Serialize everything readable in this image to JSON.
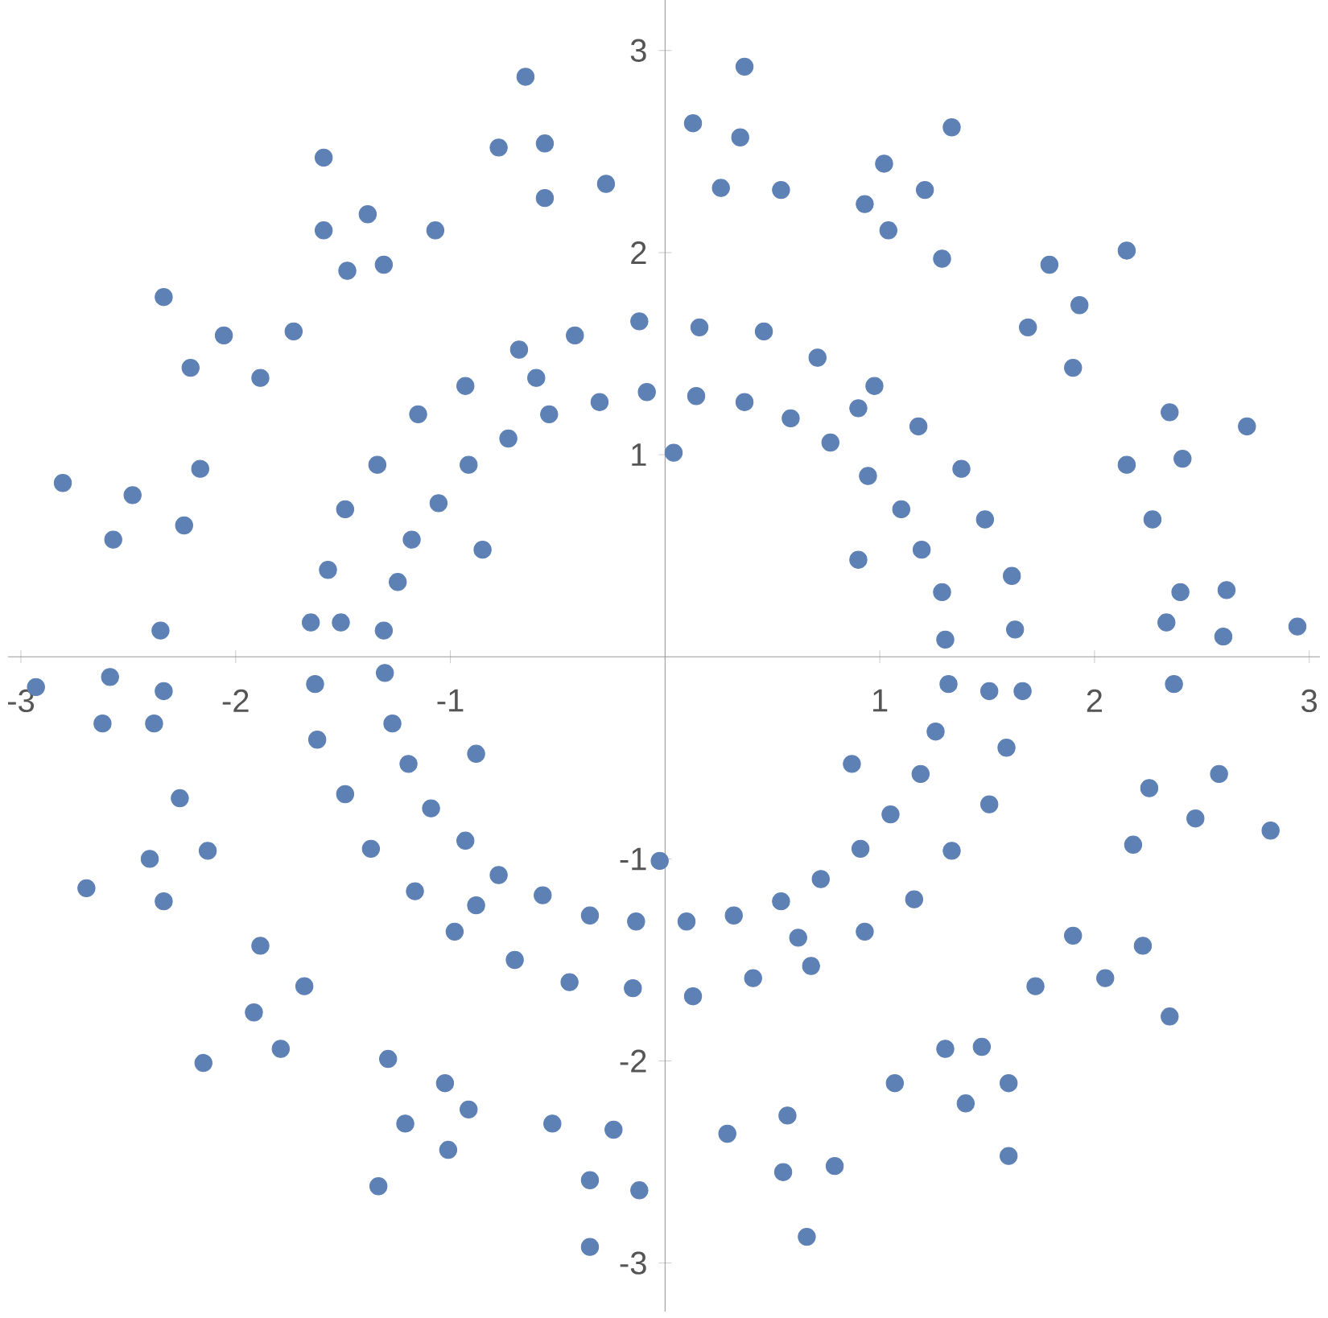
{
  "chart_data": {
    "type": "scatter",
    "marker": "circle",
    "grid": false,
    "xlim": [
      -3.06,
      3.05
    ],
    "ylim": [
      -3.24,
      3.25
    ],
    "xticks": [
      -3,
      -2,
      -1,
      1,
      2,
      3
    ],
    "yticks": [
      -3,
      -2,
      -1,
      1,
      2,
      3
    ],
    "series": [
      {
        "color": "#5e81b5",
        "x": [
          -0.65,
          -0.775,
          -0.56,
          -1.59,
          -0.275,
          -0.56,
          -1.385,
          -1.59,
          -1.07,
          -1.48,
          -1.31,
          -2.335,
          -2.055,
          -1.73,
          -0.12,
          -0.42,
          -0.68,
          -2.21,
          -1.885,
          -0.93,
          -0.6,
          -0.085,
          -0.305,
          -1.15,
          -0.54,
          -0.73,
          -2.805,
          -2.48,
          -2.165,
          -1.34,
          -0.915,
          -2.24,
          -2.57,
          -1.49,
          -1.055,
          -1.18,
          -0.85,
          -1.57,
          -1.245,
          -2.35,
          -1.65,
          -1.51,
          -1.31,
          0.37,
          0.13,
          0.35,
          1.335,
          1.02,
          0.26,
          0.54,
          1.21,
          0.93,
          1.04,
          1.29,
          1.79,
          2.15,
          1.93,
          0.16,
          0.46,
          1.69,
          0.71,
          1.9,
          0.975,
          0.145,
          0.37,
          0.9,
          0.585,
          2.35,
          1.18,
          2.71,
          0.77,
          0.04,
          2.15,
          2.41,
          1.38,
          0.945,
          1.1,
          1.49,
          2.27,
          0.9,
          1.195,
          1.615,
          1.29,
          2.4,
          2.615,
          2.335,
          1.63,
          1.305,
          2.6,
          2.945,
          -2.93,
          -2.585,
          -2.335,
          -2.62,
          -2.38,
          -1.63,
          -1.305,
          -1.62,
          -1.27,
          -0.88,
          -1.195,
          -2.26,
          -1.49,
          -1.09,
          -0.93,
          -1.37,
          -2.13,
          -2.4,
          -0.025,
          -0.775,
          -2.695,
          -1.165,
          -0.57,
          -2.335,
          -0.88,
          -0.35,
          -0.135,
          -0.98,
          -1.885,
          -0.7,
          -0.445,
          -1.68,
          -0.15,
          -1.915,
          -1.79,
          -2.15,
          -1.29,
          -1.025,
          -0.915,
          -1.21,
          -0.525,
          -0.24,
          -1.01,
          -1.335,
          -0.35,
          -0.12,
          -0.35,
          1.32,
          1.51,
          1.665,
          2.37,
          1.26,
          1.59,
          0.87,
          1.19,
          2.255,
          2.58,
          1.51,
          2.47,
          2.82,
          1.05,
          0.91,
          1.335,
          2.18,
          0.725,
          0.54,
          0.1,
          0.32,
          1.16,
          0.62,
          0.93,
          1.9,
          2.225,
          0.68,
          0.41,
          0.13,
          1.725,
          2.05,
          2.35,
          1.305,
          1.475,
          1.07,
          1.6,
          1.4,
          0.57,
          0.29,
          1.6,
          0.55,
          0.79,
          0.66
        ],
        "values": [
          2.87,
          2.52,
          2.54,
          2.47,
          2.34,
          2.27,
          2.19,
          2.11,
          2.11,
          1.91,
          1.94,
          1.78,
          1.59,
          1.61,
          1.66,
          1.59,
          1.52,
          1.43,
          1.38,
          1.34,
          1.38,
          1.31,
          1.26,
          1.2,
          1.2,
          1.08,
          0.86,
          0.8,
          0.93,
          0.95,
          0.95,
          0.65,
          0.58,
          0.73,
          0.76,
          0.58,
          0.53,
          0.43,
          0.37,
          0.13,
          0.17,
          0.17,
          0.13,
          2.92,
          2.64,
          2.57,
          2.62,
          2.44,
          2.32,
          2.31,
          2.31,
          2.24,
          2.11,
          1.97,
          1.94,
          2.01,
          1.74,
          1.63,
          1.61,
          1.63,
          1.48,
          1.43,
          1.34,
          1.29,
          1.26,
          1.23,
          1.18,
          1.21,
          1.14,
          1.14,
          1.06,
          1.01,
          0.95,
          0.98,
          0.93,
          0.895,
          0.73,
          0.68,
          0.68,
          0.48,
          0.53,
          0.4,
          0.32,
          0.32,
          0.33,
          0.17,
          0.135,
          0.085,
          0.1,
          0.15,
          -0.15,
          -0.1,
          -0.17,
          -0.33,
          -0.33,
          -0.135,
          -0.08,
          -0.41,
          -0.33,
          -0.48,
          -0.53,
          -0.7,
          -0.68,
          -0.75,
          -0.91,
          -0.95,
          -0.96,
          -1.0,
          -1.01,
          -1.08,
          -1.145,
          -1.16,
          -1.18,
          -1.21,
          -1.23,
          -1.28,
          -1.31,
          -1.36,
          -1.43,
          -1.5,
          -1.61,
          -1.63,
          -1.64,
          -1.76,
          -1.94,
          -2.01,
          -1.99,
          -2.11,
          -2.24,
          -2.31,
          -2.31,
          -2.34,
          -2.44,
          -2.62,
          -2.59,
          -2.64,
          -2.92,
          -0.135,
          -0.17,
          -0.17,
          -0.135,
          -0.37,
          -0.45,
          -0.53,
          -0.58,
          -0.65,
          -0.58,
          -0.73,
          -0.8,
          -0.86,
          -0.78,
          -0.95,
          -0.96,
          -0.93,
          -1.1,
          -1.21,
          -1.31,
          -1.28,
          -1.2,
          -1.39,
          -1.36,
          -1.38,
          -1.43,
          -1.53,
          -1.59,
          -1.68,
          -1.63,
          -1.59,
          -1.78,
          -1.94,
          -1.93,
          -2.11,
          -2.11,
          -2.21,
          -2.27,
          -2.36,
          -2.47,
          -2.55,
          -2.52,
          -2.87
        ]
      }
    ]
  }
}
